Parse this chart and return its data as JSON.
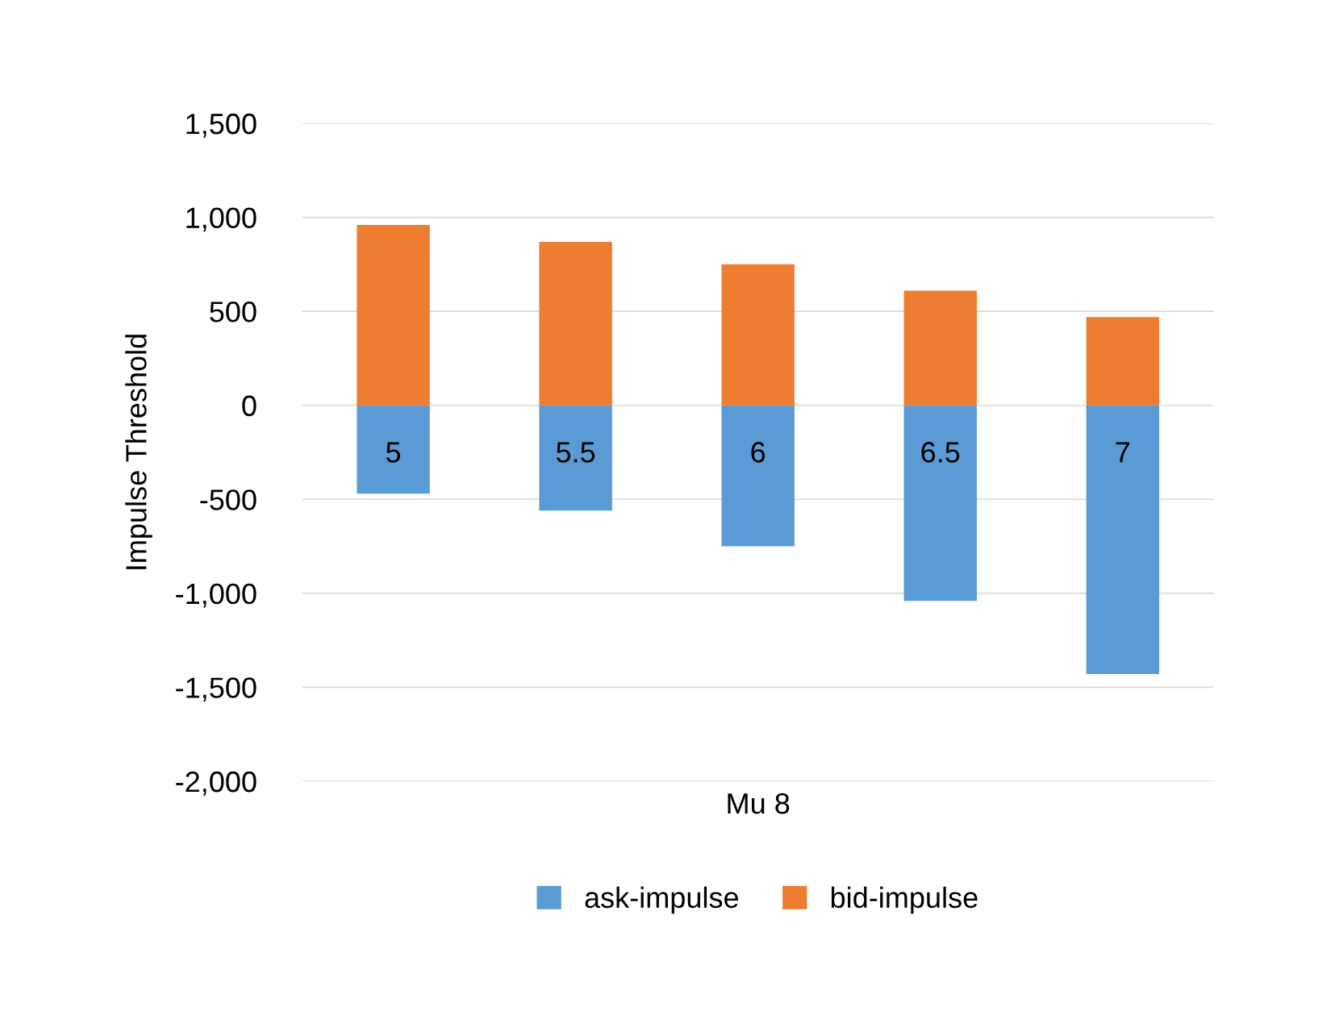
{
  "chart_data": {
    "type": "bar",
    "stacked": true,
    "xlabel": "Mu 8",
    "ylabel": "Impulse Threshold",
    "categories": [
      "5",
      "5.5",
      "6",
      "6.5",
      "7"
    ],
    "series": [
      {
        "name": "ask-impulse",
        "color": "#5b9bd5",
        "values": [
          -470,
          -560,
          -750,
          -1040,
          -1430
        ]
      },
      {
        "name": "bid-impulse",
        "color": "#ed7d31",
        "values": [
          960,
          870,
          750,
          610,
          470
        ]
      }
    ],
    "ylim": [
      -2000,
      1500
    ],
    "yticks": [
      {
        "value": -2000,
        "label": "-2,000"
      },
      {
        "value": -1500,
        "label": "-1,500"
      },
      {
        "value": -1000,
        "label": "-1,000"
      },
      {
        "value": -500,
        "label": "-500"
      },
      0,
      {
        "value": 500,
        "label": "500"
      },
      {
        "value": 1000,
        "label": "1,000"
      },
      {
        "value": 1500,
        "label": "1,500"
      }
    ],
    "grid": "y",
    "legend": "bottom"
  }
}
